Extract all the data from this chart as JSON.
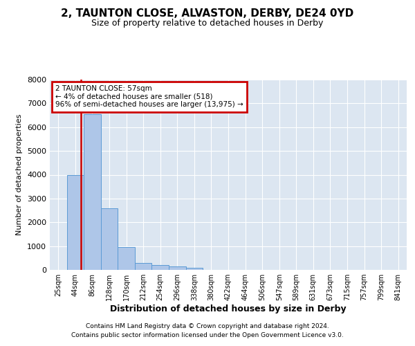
{
  "title": "2, TAUNTON CLOSE, ALVASTON, DERBY, DE24 0YD",
  "subtitle": "Size of property relative to detached houses in Derby",
  "xlabel": "Distribution of detached houses by size in Derby",
  "ylabel": "Number of detached properties",
  "annotation_line1": "2 TAUNTON CLOSE: 57sqm",
  "annotation_line2": "← 4% of detached houses are smaller (518)",
  "annotation_line3": "96% of semi-detached houses are larger (13,975) →",
  "footer_line1": "Contains HM Land Registry data © Crown copyright and database right 2024.",
  "footer_line2": "Contains public sector information licensed under the Open Government Licence v3.0.",
  "bin_labels": [
    "25sqm",
    "44sqm",
    "86sqm",
    "128sqm",
    "170sqm",
    "212sqm",
    "254sqm",
    "296sqm",
    "338sqm",
    "380sqm",
    "422sqm",
    "464sqm",
    "506sqm",
    "547sqm",
    "589sqm",
    "631sqm",
    "673sqm",
    "715sqm",
    "757sqm",
    "799sqm",
    "841sqm"
  ],
  "bar_values": [
    10,
    4000,
    6550,
    2600,
    950,
    300,
    200,
    135,
    100,
    0,
    0,
    0,
    0,
    0,
    0,
    0,
    0,
    0,
    0,
    0,
    0
  ],
  "bar_color": "#aec6e8",
  "bar_edge_color": "#5b9bd5",
  "property_line_x": 1.35,
  "property_line_color": "#cc0000",
  "annotation_box_color": "#cc0000",
  "background_color": "#dce6f1",
  "ylim": [
    0,
    8000
  ],
  "yticks": [
    0,
    1000,
    2000,
    3000,
    4000,
    5000,
    6000,
    7000,
    8000
  ]
}
